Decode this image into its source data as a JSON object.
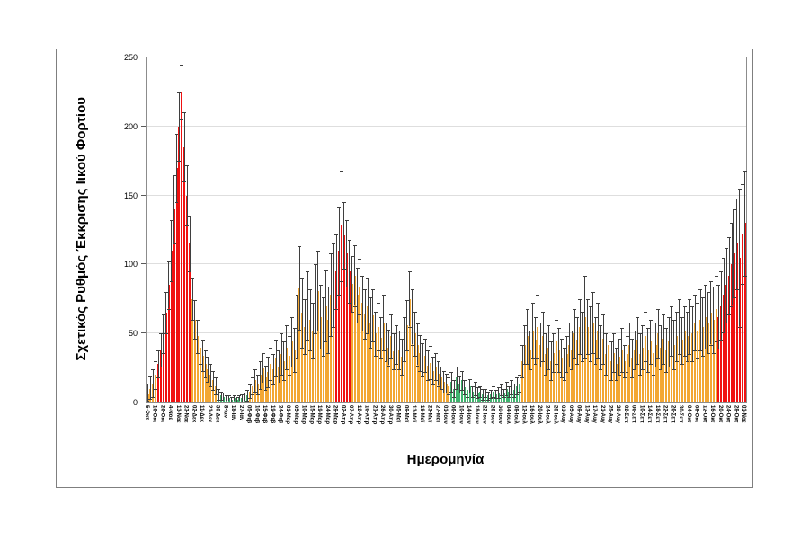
{
  "chart_data": {
    "type": "bar",
    "title": "",
    "xlabel": "Ημερομηνία",
    "ylabel": "Σχετικός Ρυθμός Έκκρισης Ιικού Φορτίου",
    "ylim": [
      0,
      250
    ],
    "yticks": [
      0,
      50,
      100,
      150,
      200,
      250
    ],
    "grid": "horizontal",
    "legend": "none",
    "label_every_n_bars": 3,
    "palette": [
      "#F3A733",
      "#F01111",
      "#3FB46E"
    ],
    "palette_meaning": [
      "orange-normal",
      "red-peak",
      "green-low"
    ],
    "error_bar_color": "#3f3f3f",
    "categories": [
      "5-Οκτ",
      "16-Οκτ",
      "26-Οκτ",
      "4-Νοε",
      "13-Νοε",
      "23-Νοε",
      "02-Δεκ",
      "11-Δεκ",
      "21-Δεκ",
      "30-Δεκ",
      "8-Ιαν",
      "18-Ιαν",
      "27-Ιαν",
      "05-Φεβ",
      "10-Φεβ",
      "15-Φεβ",
      "19-Φεβ",
      "24-Φεβ",
      "01-Μαρ",
      "05-Μαρ",
      "10-Μαρ",
      "15-Μαρ",
      "19-Μαρ",
      "24-Μαρ",
      "29-Μαρ",
      "02-Απρ",
      "07-Απρ",
      "12-Απρ",
      "16-Απρ",
      "21-Απρ",
      "26-Απρ",
      "30-Απρ",
      "05-Μαϊ",
      "09-Μαϊ",
      "13-Μαϊ",
      "18-Μαϊ",
      "23-Μαϊ",
      "27-Μαϊ",
      "01-Ιουν",
      "06-Ιουν",
      "10-Ιουν",
      "14-Ιουν",
      "18-Ιουν",
      "22-Ιουν",
      "26-Ιουν",
      "30-Ιουν",
      "04-Ιουλ",
      "08-Ιουλ",
      "12-Ιουλ",
      "16-Ιουλ",
      "20-Ιουλ",
      "24-Ιουλ",
      "28-Ιουλ",
      "01-Αυγ",
      "05-Αυγ",
      "09-Αυγ",
      "13-Αυγ",
      "17-Αυγ",
      "21-Αυγ",
      "25-Αυγ",
      "29-Αυγ",
      "02-Σεπ",
      "06-Σεπ",
      "10-Σεπ",
      "14-Σεπ",
      "18-Σεπ",
      "22-Σεπ",
      "26-Σεπ",
      "30-Σεπ",
      "04-Οκτ",
      "08-Οκτ",
      "12-Οκτ",
      "16-Οκτ",
      "20-Οκτ",
      "24-Οκτ",
      "28-Οκτ",
      "01-Νοε"
    ],
    "bars_format": [
      "value",
      "error_top_value",
      "color_index"
    ],
    "bars": [
      [
        6,
        14,
        0
      ],
      [
        10,
        19,
        0
      ],
      [
        14,
        24,
        0
      ],
      [
        20,
        30,
        0
      ],
      [
        28,
        38,
        1
      ],
      [
        38,
        50,
        1
      ],
      [
        50,
        64,
        1
      ],
      [
        65,
        80,
        1
      ],
      [
        85,
        102,
        1
      ],
      [
        110,
        132,
        1
      ],
      [
        140,
        165,
        1
      ],
      [
        170,
        195,
        1
      ],
      [
        200,
        225,
        1
      ],
      [
        225,
        245,
        1
      ],
      [
        185,
        210,
        1
      ],
      [
        150,
        172,
        1
      ],
      [
        115,
        135,
        1
      ],
      [
        75,
        90,
        0
      ],
      [
        60,
        74,
        0
      ],
      [
        48,
        60,
        0
      ],
      [
        40,
        52,
        0
      ],
      [
        34,
        45,
        0
      ],
      [
        28,
        38,
        0
      ],
      [
        24,
        33,
        0
      ],
      [
        20,
        28,
        0
      ],
      [
        16,
        23,
        0
      ],
      [
        12,
        18,
        0
      ],
      [
        6,
        10,
        2
      ],
      [
        5,
        8,
        2
      ],
      [
        4,
        7,
        2
      ],
      [
        3,
        5,
        2
      ],
      [
        3,
        5,
        2
      ],
      [
        2,
        4,
        2
      ],
      [
        3,
        5,
        2
      ],
      [
        2,
        4,
        2
      ],
      [
        3,
        5,
        2
      ],
      [
        3,
        6,
        2
      ],
      [
        4,
        7,
        2
      ],
      [
        5,
        9,
        2
      ],
      [
        8,
        13,
        0
      ],
      [
        12,
        18,
        0
      ],
      [
        16,
        24,
        0
      ],
      [
        13,
        20,
        0
      ],
      [
        20,
        30,
        0
      ],
      [
        25,
        36,
        0
      ],
      [
        18,
        27,
        0
      ],
      [
        22,
        33,
        0
      ],
      [
        28,
        40,
        0
      ],
      [
        24,
        35,
        0
      ],
      [
        32,
        45,
        0
      ],
      [
        26,
        38,
        0
      ],
      [
        35,
        50,
        0
      ],
      [
        30,
        44,
        0
      ],
      [
        40,
        56,
        0
      ],
      [
        34,
        48,
        0
      ],
      [
        44,
        62,
        0
      ],
      [
        38,
        54,
        0
      ],
      [
        55,
        78,
        0
      ],
      [
        83,
        113,
        0
      ],
      [
        65,
        90,
        0
      ],
      [
        55,
        75,
        0
      ],
      [
        70,
        95,
        0
      ],
      [
        60,
        82,
        0
      ],
      [
        52,
        72,
        0
      ],
      [
        75,
        100,
        0
      ],
      [
        81,
        110,
        0
      ],
      [
        62,
        85,
        0
      ],
      [
        55,
        76,
        0
      ],
      [
        70,
        96,
        0
      ],
      [
        60,
        84,
        0
      ],
      [
        78,
        108,
        0
      ],
      [
        85,
        115,
        0
      ],
      [
        95,
        122,
        1
      ],
      [
        110,
        142,
        1
      ],
      [
        128,
        168,
        1
      ],
      [
        121,
        145,
        1
      ],
      [
        108,
        132,
        1
      ],
      [
        95,
        118,
        1
      ],
      [
        86,
        106,
        0
      ],
      [
        92,
        114,
        0
      ],
      [
        78,
        98,
        0
      ],
      [
        84,
        104,
        0
      ],
      [
        72,
        92,
        0
      ],
      [
        64,
        82,
        0
      ],
      [
        70,
        90,
        0
      ],
      [
        58,
        76,
        0
      ],
      [
        63,
        82,
        0
      ],
      [
        50,
        66,
        0
      ],
      [
        55,
        72,
        0
      ],
      [
        47,
        62,
        0
      ],
      [
        58,
        78,
        0
      ],
      [
        44,
        58,
        0
      ],
      [
        40,
        53,
        0
      ],
      [
        48,
        64,
        0
      ],
      [
        37,
        50,
        0
      ],
      [
        42,
        56,
        0
      ],
      [
        38,
        52,
        0
      ],
      [
        33,
        46,
        0
      ],
      [
        46,
        62,
        0
      ],
      [
        56,
        74,
        0
      ],
      [
        75,
        95,
        0
      ],
      [
        62,
        82,
        0
      ],
      [
        50,
        66,
        0
      ],
      [
        42,
        57,
        0
      ],
      [
        36,
        49,
        0
      ],
      [
        31,
        43,
        0
      ],
      [
        34,
        46,
        0
      ],
      [
        27,
        38,
        0
      ],
      [
        29,
        41,
        0
      ],
      [
        23,
        33,
        0
      ],
      [
        26,
        36,
        0
      ],
      [
        21,
        30,
        0
      ],
      [
        18,
        26,
        0
      ],
      [
        15,
        23,
        0
      ],
      [
        14,
        21,
        0
      ],
      [
        12,
        18,
        0
      ],
      [
        15,
        22,
        2
      ],
      [
        10,
        16,
        2
      ],
      [
        18,
        26,
        2
      ],
      [
        13,
        19,
        2
      ],
      [
        16,
        23,
        2
      ],
      [
        11,
        16,
        2
      ],
      [
        9,
        14,
        2
      ],
      [
        12,
        17,
        2
      ],
      [
        8,
        12,
        2
      ],
      [
        10,
        15,
        2
      ],
      [
        7,
        11,
        2
      ],
      [
        8,
        12,
        2
      ],
      [
        6,
        10,
        2
      ],
      [
        7,
        10,
        2
      ],
      [
        5,
        8,
        2
      ],
      [
        6,
        9,
        2
      ],
      [
        8,
        12,
        2
      ],
      [
        6,
        9,
        2
      ],
      [
        7,
        11,
        2
      ],
      [
        9,
        13,
        2
      ],
      [
        7,
        10,
        2
      ],
      [
        10,
        15,
        2
      ],
      [
        8,
        12,
        2
      ],
      [
        11,
        16,
        2
      ],
      [
        9,
        14,
        2
      ],
      [
        12,
        18,
        2
      ],
      [
        14,
        20,
        2
      ],
      [
        30,
        42,
        0
      ],
      [
        42,
        56,
        0
      ],
      [
        48,
        68,
        0
      ],
      [
        38,
        52,
        0
      ],
      [
        52,
        72,
        0
      ],
      [
        45,
        62,
        0
      ],
      [
        55,
        78,
        0
      ],
      [
        42,
        58,
        0
      ],
      [
        48,
        66,
        0
      ],
      [
        35,
        50,
        0
      ],
      [
        40,
        56,
        0
      ],
      [
        30,
        44,
        0
      ],
      [
        36,
        50,
        0
      ],
      [
        44,
        60,
        0
      ],
      [
        38,
        54,
        0
      ],
      [
        32,
        46,
        0
      ],
      [
        28,
        40,
        0
      ],
      [
        35,
        48,
        0
      ],
      [
        42,
        58,
        0
      ],
      [
        38,
        52,
        0
      ],
      [
        50,
        68,
        0
      ],
      [
        45,
        62,
        0
      ],
      [
        55,
        75,
        0
      ],
      [
        48,
        66,
        0
      ],
      [
        62,
        92,
        0
      ],
      [
        55,
        75,
        0
      ],
      [
        50,
        70,
        0
      ],
      [
        58,
        80,
        0
      ],
      [
        45,
        62,
        0
      ],
      [
        52,
        72,
        0
      ],
      [
        40,
        56,
        0
      ],
      [
        46,
        64,
        0
      ],
      [
        35,
        50,
        0
      ],
      [
        42,
        58,
        0
      ],
      [
        30,
        44,
        0
      ],
      [
        36,
        50,
        0
      ],
      [
        28,
        40,
        0
      ],
      [
        33,
        46,
        0
      ],
      [
        38,
        54,
        0
      ],
      [
        30,
        42,
        0
      ],
      [
        35,
        48,
        0
      ],
      [
        42,
        58,
        0
      ],
      [
        32,
        46,
        0
      ],
      [
        38,
        52,
        0
      ],
      [
        45,
        62,
        0
      ],
      [
        35,
        50,
        0
      ],
      [
        40,
        56,
        0
      ],
      [
        48,
        66,
        0
      ],
      [
        38,
        54,
        0
      ],
      [
        44,
        60,
        0
      ],
      [
        36,
        52,
        0
      ],
      [
        42,
        58,
        0
      ],
      [
        50,
        68,
        0
      ],
      [
        40,
        56,
        0
      ],
      [
        46,
        64,
        0
      ],
      [
        38,
        54,
        0
      ],
      [
        44,
        62,
        0
      ],
      [
        52,
        70,
        0
      ],
      [
        42,
        60,
        0
      ],
      [
        48,
        66,
        0
      ],
      [
        55,
        75,
        0
      ],
      [
        45,
        62,
        0
      ],
      [
        52,
        70,
        0
      ],
      [
        48,
        66,
        0
      ],
      [
        55,
        75,
        0
      ],
      [
        50,
        70,
        0
      ],
      [
        58,
        78,
        0
      ],
      [
        52,
        72,
        0
      ],
      [
        60,
        82,
        0
      ],
      [
        55,
        76,
        0
      ],
      [
        62,
        85,
        0
      ],
      [
        58,
        80,
        0
      ],
      [
        65,
        88,
        0
      ],
      [
        60,
        84,
        0
      ],
      [
        68,
        92,
        0
      ],
      [
        62,
        85,
        1
      ],
      [
        70,
        95,
        1
      ],
      [
        78,
        105,
        1
      ],
      [
        85,
        112,
        1
      ],
      [
        92,
        120,
        1
      ],
      [
        100,
        130,
        1
      ],
      [
        108,
        140,
        1
      ],
      [
        115,
        148,
        1
      ],
      [
        105,
        155,
        1
      ],
      [
        122,
        158,
        1
      ],
      [
        130,
        168,
        1
      ]
    ]
  }
}
